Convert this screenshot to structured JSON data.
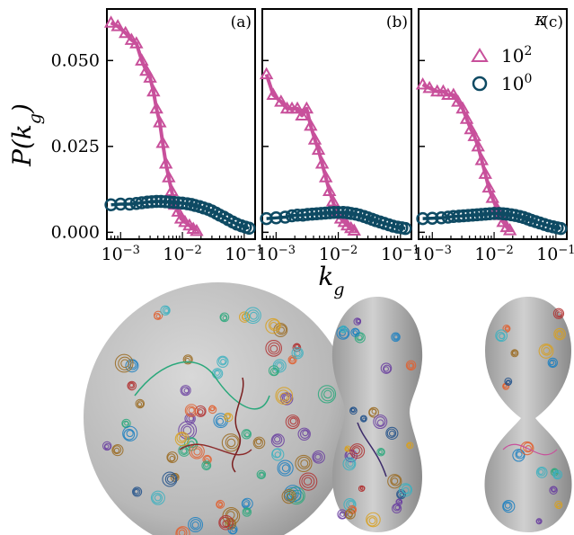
{
  "chart_data": {
    "type": "line",
    "ylabel": "P(k_g)",
    "xlabel": "k_g",
    "xscale": "log",
    "xlim": [
      0.0006,
      0.15
    ],
    "ylim": [
      -0.002,
      0.065
    ],
    "yticks": [
      0.0,
      0.025,
      0.05
    ],
    "ytick_labels": [
      "0.000",
      "0.025",
      "0.050"
    ],
    "xticks": [
      0.001,
      0.01,
      0.1
    ],
    "legend_title": "κ",
    "legend_position": "top-right",
    "grid": false,
    "panels": [
      {
        "label": "(a)",
        "series": [
          {
            "name": "10^2",
            "marker": "triangle",
            "color": "#c8509b",
            "x": [
              0.0007,
              0.0009,
              0.0012,
              0.0015,
              0.0018,
              0.0022,
              0.0026,
              0.003,
              0.0034,
              0.0038,
              0.0043,
              0.0048,
              0.0054,
              0.006,
              0.0067,
              0.0075,
              0.0085,
              0.0095,
              0.011,
              0.013,
              0.015,
              0.017
            ],
            "y": [
              0.061,
              0.06,
              0.058,
              0.056,
              0.055,
              0.05,
              0.047,
              0.045,
              0.041,
              0.036,
              0.032,
              0.026,
              0.02,
              0.016,
              0.012,
              0.008,
              0.006,
              0.004,
              0.003,
              0.002,
              0.001,
              0.0004
            ]
          },
          {
            "name": "10^0",
            "marker": "circle",
            "color": "#0e4a63",
            "x": [
              0.0007,
              0.001,
              0.0014,
              0.0018,
              0.0022,
              0.0027,
              0.0032,
              0.0038,
              0.0045,
              0.0053,
              0.0062,
              0.0073,
              0.0085,
              0.01,
              0.012,
              0.014,
              0.016,
              0.019,
              0.022,
              0.026,
              0.03,
              0.035,
              0.04,
              0.047,
              0.055,
              0.065,
              0.076,
              0.09,
              0.105,
              0.12
            ],
            "y": [
              0.008,
              0.0082,
              0.0082,
              0.0084,
              0.0086,
              0.0088,
              0.0089,
              0.009,
              0.009,
              0.0089,
              0.0088,
              0.0087,
              0.0086,
              0.0085,
              0.0083,
              0.0081,
              0.0078,
              0.0075,
              0.0071,
              0.0067,
              0.0062,
              0.0056,
              0.005,
              0.0044,
              0.0037,
              0.003,
              0.0024,
              0.0019,
              0.0015,
              0.0012
            ]
          }
        ]
      },
      {
        "label": "(b)",
        "series": [
          {
            "name": "10^2",
            "marker": "triangle",
            "color": "#c8509b",
            "x": [
              0.0007,
              0.0009,
              0.0012,
              0.0015,
              0.0018,
              0.0022,
              0.0026,
              0.0031,
              0.0036,
              0.0042,
              0.0048,
              0.0055,
              0.0063,
              0.0072,
              0.0082,
              0.0094,
              0.011,
              0.0125,
              0.014,
              0.016,
              0.018
            ],
            "y": [
              0.046,
              0.04,
              0.038,
              0.036,
              0.036,
              0.036,
              0.034,
              0.036,
              0.031,
              0.027,
              0.024,
              0.02,
              0.016,
              0.012,
              0.009,
              0.006,
              0.004,
              0.003,
              0.002,
              0.0012,
              0.0005
            ]
          },
          {
            "name": "10^0",
            "marker": "circle",
            "color": "#0e4a63",
            "x": [
              0.0007,
              0.001,
              0.0014,
              0.0018,
              0.0022,
              0.0027,
              0.0032,
              0.0038,
              0.0045,
              0.0053,
              0.0062,
              0.0073,
              0.0085,
              0.01,
              0.012,
              0.014,
              0.016,
              0.019,
              0.022,
              0.026,
              0.03,
              0.035,
              0.04,
              0.047,
              0.055,
              0.065,
              0.076,
              0.09,
              0.105,
              0.12
            ],
            "y": [
              0.004,
              0.0042,
              0.0044,
              0.0048,
              0.005,
              0.005,
              0.0052,
              0.0053,
              0.0054,
              0.0055,
              0.0056,
              0.0057,
              0.0058,
              0.0058,
              0.0058,
              0.0057,
              0.0055,
              0.0053,
              0.005,
              0.0046,
              0.0042,
              0.0038,
              0.0034,
              0.003,
              0.0026,
              0.0022,
              0.0018,
              0.0015,
              0.0013,
              0.0011
            ]
          }
        ]
      },
      {
        "label": "(c)",
        "series": [
          {
            "name": "10^2",
            "marker": "triangle",
            "color": "#c8509b",
            "x": [
              0.0007,
              0.0009,
              0.0012,
              0.0015,
              0.0018,
              0.0022,
              0.0026,
              0.0031,
              0.0036,
              0.0042,
              0.0048,
              0.0055,
              0.0063,
              0.0072,
              0.0082,
              0.0094,
              0.011,
              0.0125,
              0.014,
              0.016,
              0.018
            ],
            "y": [
              0.043,
              0.042,
              0.041,
              0.041,
              0.04,
              0.04,
              0.038,
              0.036,
              0.033,
              0.03,
              0.028,
              0.025,
              0.021,
              0.017,
              0.013,
              0.01,
              0.007,
              0.005,
              0.003,
              0.0015,
              0.0006
            ]
          },
          {
            "name": "10^0",
            "marker": "circle",
            "color": "#0e4a63",
            "x": [
              0.0007,
              0.001,
              0.0014,
              0.0018,
              0.0022,
              0.0027,
              0.0032,
              0.0038,
              0.0045,
              0.0053,
              0.0062,
              0.0073,
              0.0085,
              0.01,
              0.012,
              0.014,
              0.016,
              0.019,
              0.022,
              0.026,
              0.03,
              0.035,
              0.04,
              0.047,
              0.055,
              0.065,
              0.076,
              0.09,
              0.105,
              0.12
            ],
            "y": [
              0.004,
              0.0041,
              0.0042,
              0.0044,
              0.0046,
              0.0047,
              0.0048,
              0.0049,
              0.005,
              0.0051,
              0.0052,
              0.0053,
              0.0054,
              0.0055,
              0.0055,
              0.0054,
              0.0053,
              0.0051,
              0.0049,
              0.0046,
              0.0043,
              0.0039,
              0.0035,
              0.0031,
              0.0027,
              0.0023,
              0.0019,
              0.0016,
              0.0013,
              0.0011
            ]
          }
        ]
      }
    ]
  },
  "colors": {
    "triangle_series": "#c8509b",
    "circle_series": "#0e4a63",
    "vesicle_surface": "#bdbdbd"
  },
  "vesicle_images": [
    {
      "shape": "sphere"
    },
    {
      "shape": "peanut"
    },
    {
      "shape": "dumbbell"
    }
  ]
}
